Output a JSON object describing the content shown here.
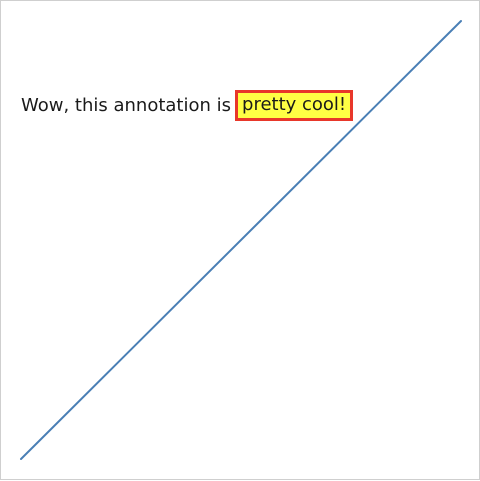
{
  "chart_data": {
    "type": "line",
    "x": [
      0,
      1
    ],
    "y": [
      0,
      1
    ],
    "xlim": [
      0,
      1
    ],
    "ylim": [
      0,
      1
    ],
    "axes_visible": false,
    "grid": false,
    "line_color": "#4a7fb5",
    "annotation": {
      "prefix": "Wow, this annotation is",
      "highlight": "pretty cool!",
      "highlight_background": "#ffff44",
      "highlight_border": "#e8372a"
    }
  }
}
